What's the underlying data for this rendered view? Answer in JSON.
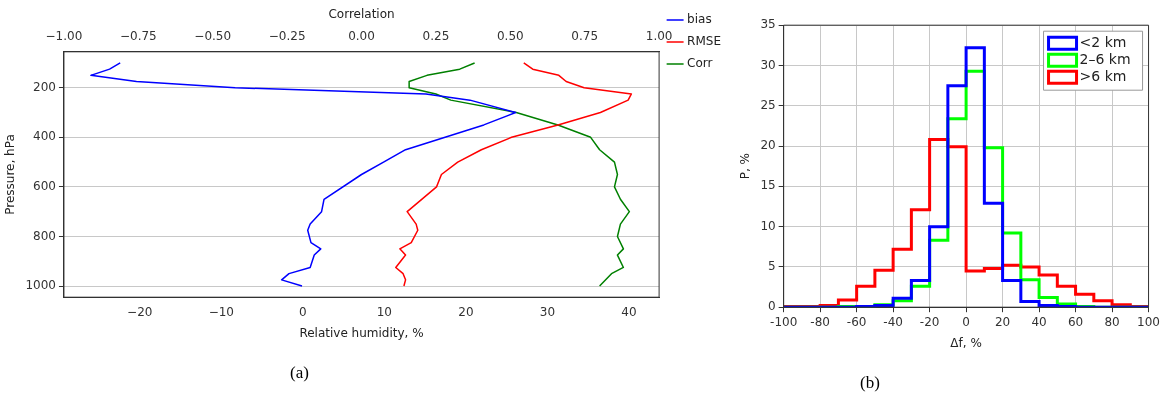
{
  "chart_data": [
    {
      "type": "line",
      "xlabel": "Relative humidity, %",
      "ylabel": "Pressure, hPa",
      "x2label": "Correlation",
      "xlim": [
        -29.3,
        43.7
      ],
      "xticks": [
        {
          "value": -20,
          "label": "−20"
        },
        {
          "value": -10,
          "label": "−10"
        },
        0,
        10,
        20,
        30,
        40
      ],
      "x2lim": [
        -1,
        1
      ],
      "x2ticks": [
        {
          "value": -1,
          "label": "−1.00"
        },
        {
          "value": -0.75,
          "label": "−0.75"
        },
        {
          "value": -0.5,
          "label": "−0.50"
        },
        {
          "value": -0.25,
          "label": "−0.25"
        },
        {
          "value": 0,
          "label": "0.00"
        },
        {
          "value": 0.25,
          "label": "0.25"
        },
        {
          "value": 0.5,
          "label": "0.50"
        },
        {
          "value": 0.75,
          "label": "0.75"
        },
        {
          "value": 1,
          "label": "1.00"
        }
      ],
      "ylim": [
        1045,
        55
      ],
      "yticks": [
        200,
        400,
        600,
        800,
        1000
      ],
      "grid": "y",
      "legend": "right",
      "annotations": [
        "(a)"
      ],
      "series": [
        {
          "name": "bias",
          "color": "#0000ff",
          "x": [
            -22.4,
            -23.7,
            -26.0,
            -20.4,
            -8.3,
            15.1,
            20.5,
            26.1,
            22.2,
            12.6,
            9.9,
            7.2,
            2.6,
            2.3,
            0.9,
            0.6,
            1.0,
            2.2,
            1.4,
            0.9,
            -1.7,
            -2.6,
            -0.1
          ],
          "values": [
            100,
            125,
            150,
            175,
            200,
            225,
            250,
            300,
            350,
            450,
            500,
            550,
            650,
            700,
            750,
            775,
            825,
            850,
            875,
            925,
            950,
            975,
            1000
          ]
        },
        {
          "name": "RMSE",
          "color": "#ff0000",
          "x": [
            27.1,
            28.2,
            31.4,
            32.3,
            34.5,
            40.3,
            39.9,
            36.5,
            31.3,
            25.6,
            21.9,
            19.0,
            17.0,
            16.4,
            12.8,
            13.9,
            14.1,
            13.3,
            11.9,
            12.6,
            11.4,
            12.3,
            12.6,
            12.4
          ],
          "values": [
            100,
            125,
            150,
            175,
            200,
            225,
            250,
            300,
            350,
            400,
            450,
            500,
            550,
            600,
            700,
            750,
            775,
            825,
            850,
            875,
            925,
            950,
            975,
            1000
          ]
        },
        {
          "name": "Corr",
          "color": "#008000",
          "axis": "x2",
          "x": [
            0.38,
            0.33,
            0.22,
            0.16,
            0.16,
            0.25,
            0.3,
            0.52,
            0.66,
            0.77,
            0.8,
            0.85,
            0.86,
            0.85,
            0.87,
            0.9,
            0.87,
            0.86,
            0.88,
            0.86,
            0.88,
            0.84,
            0.8
          ],
          "values": [
            100,
            125,
            150,
            175,
            200,
            225,
            250,
            300,
            350,
            400,
            450,
            500,
            550,
            600,
            650,
            700,
            750,
            800,
            850,
            875,
            925,
            950,
            1000
          ]
        }
      ]
    },
    {
      "type": "histogram",
      "xlabel": "Δf, %",
      "ylabel": "P, %",
      "xlim": [
        -100,
        100
      ],
      "xticks": [
        -100,
        -80,
        -60,
        -40,
        -20,
        0,
        20,
        40,
        60,
        80,
        100
      ],
      "ylim": [
        0,
        35
      ],
      "yticks": [
        0,
        5,
        10,
        15,
        20,
        25,
        30,
        35
      ],
      "grid": true,
      "legend": "top right",
      "annotations": [
        "(b)"
      ],
      "bins": [
        -100,
        -90,
        -80,
        -70,
        -60,
        -50,
        -40,
        -30,
        -20,
        -10,
        0,
        10,
        20,
        30,
        40,
        50,
        60,
        70,
        80,
        90,
        100
      ],
      "series": [
        {
          "name": "<2 km",
          "color": "#0000ff",
          "values": [
            0,
            0,
            0,
            0,
            0.1,
            0.2,
            1.1,
            3.3,
            10.0,
            27.5,
            32.2,
            12.9,
            3.3,
            0.7,
            0.2,
            0.1,
            0,
            0,
            0,
            0
          ]
        },
        {
          "name": "2–6 km",
          "color": "#00ff00",
          "values": [
            0,
            0,
            0,
            0.1,
            0.1,
            0.3,
            0.8,
            2.6,
            8.3,
            23.4,
            29.3,
            19.8,
            9.2,
            3.4,
            1.2,
            0.4,
            0.1,
            0,
            0,
            0
          ]
        },
        {
          "name": ">6 km",
          "color": "#ff0000",
          "values": [
            0.1,
            0.1,
            0.2,
            0.9,
            2.6,
            4.6,
            7.2,
            12.1,
            20.8,
            19.9,
            4.5,
            4.8,
            5.2,
            5.0,
            4.0,
            2.6,
            1.6,
            0.8,
            0.3,
            0.1
          ]
        }
      ]
    }
  ]
}
